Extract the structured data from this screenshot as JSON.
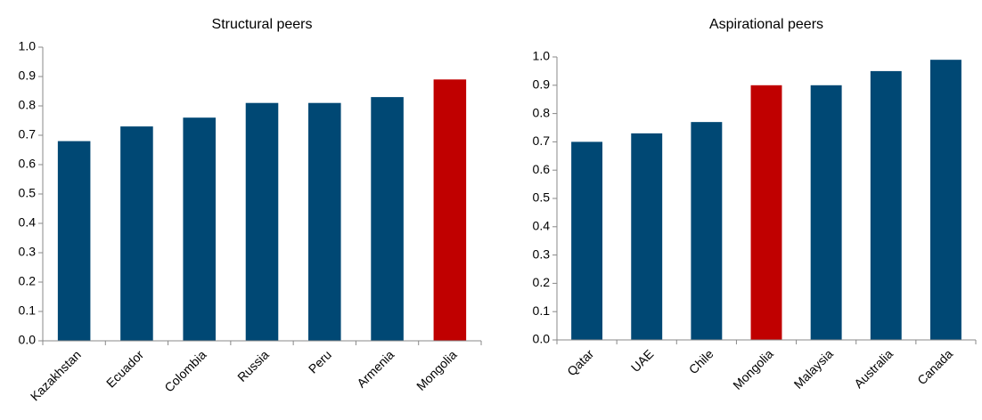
{
  "chart_data": [
    {
      "type": "bar",
      "title": "Structural peers",
      "categories": [
        "Kazakhstan",
        "Ecuador",
        "Colombia",
        "Russia",
        "Peru",
        "Armenia",
        "Mongolia"
      ],
      "values": [
        0.68,
        0.73,
        0.76,
        0.81,
        0.81,
        0.83,
        0.89
      ],
      "colors": [
        "#004874",
        "#004874",
        "#004874",
        "#004874",
        "#004874",
        "#004874",
        "#c00000"
      ],
      "ylim": [
        0,
        1
      ],
      "yticks": [
        {
          "value": 0,
          "label": "0.0"
        },
        0.1,
        0.2,
        0.3,
        0.4,
        0.5,
        0.6,
        0.7,
        0.8,
        0.9,
        {
          "value": 1,
          "label": "1.0"
        }
      ],
      "grid": false
    },
    {
      "type": "bar",
      "title": "Aspirational peers",
      "categories": [
        "Qatar",
        "UAE",
        "Chile",
        "Mongolia",
        "Malaysia",
        "Australia",
        "Canada"
      ],
      "values": [
        0.7,
        0.73,
        0.77,
        0.9,
        0.9,
        0.95,
        0.99
      ],
      "colors": [
        "#004874",
        "#004874",
        "#004874",
        "#c00000",
        "#004874",
        "#004874",
        "#004874"
      ],
      "ylim": [
        0,
        1
      ],
      "yticks": [
        {
          "value": 0,
          "label": "0.0"
        },
        0.1,
        0.2,
        0.3,
        0.4,
        0.5,
        0.6,
        0.7,
        0.8,
        0.9,
        {
          "value": 1,
          "label": "1.0"
        }
      ],
      "grid": false
    }
  ]
}
